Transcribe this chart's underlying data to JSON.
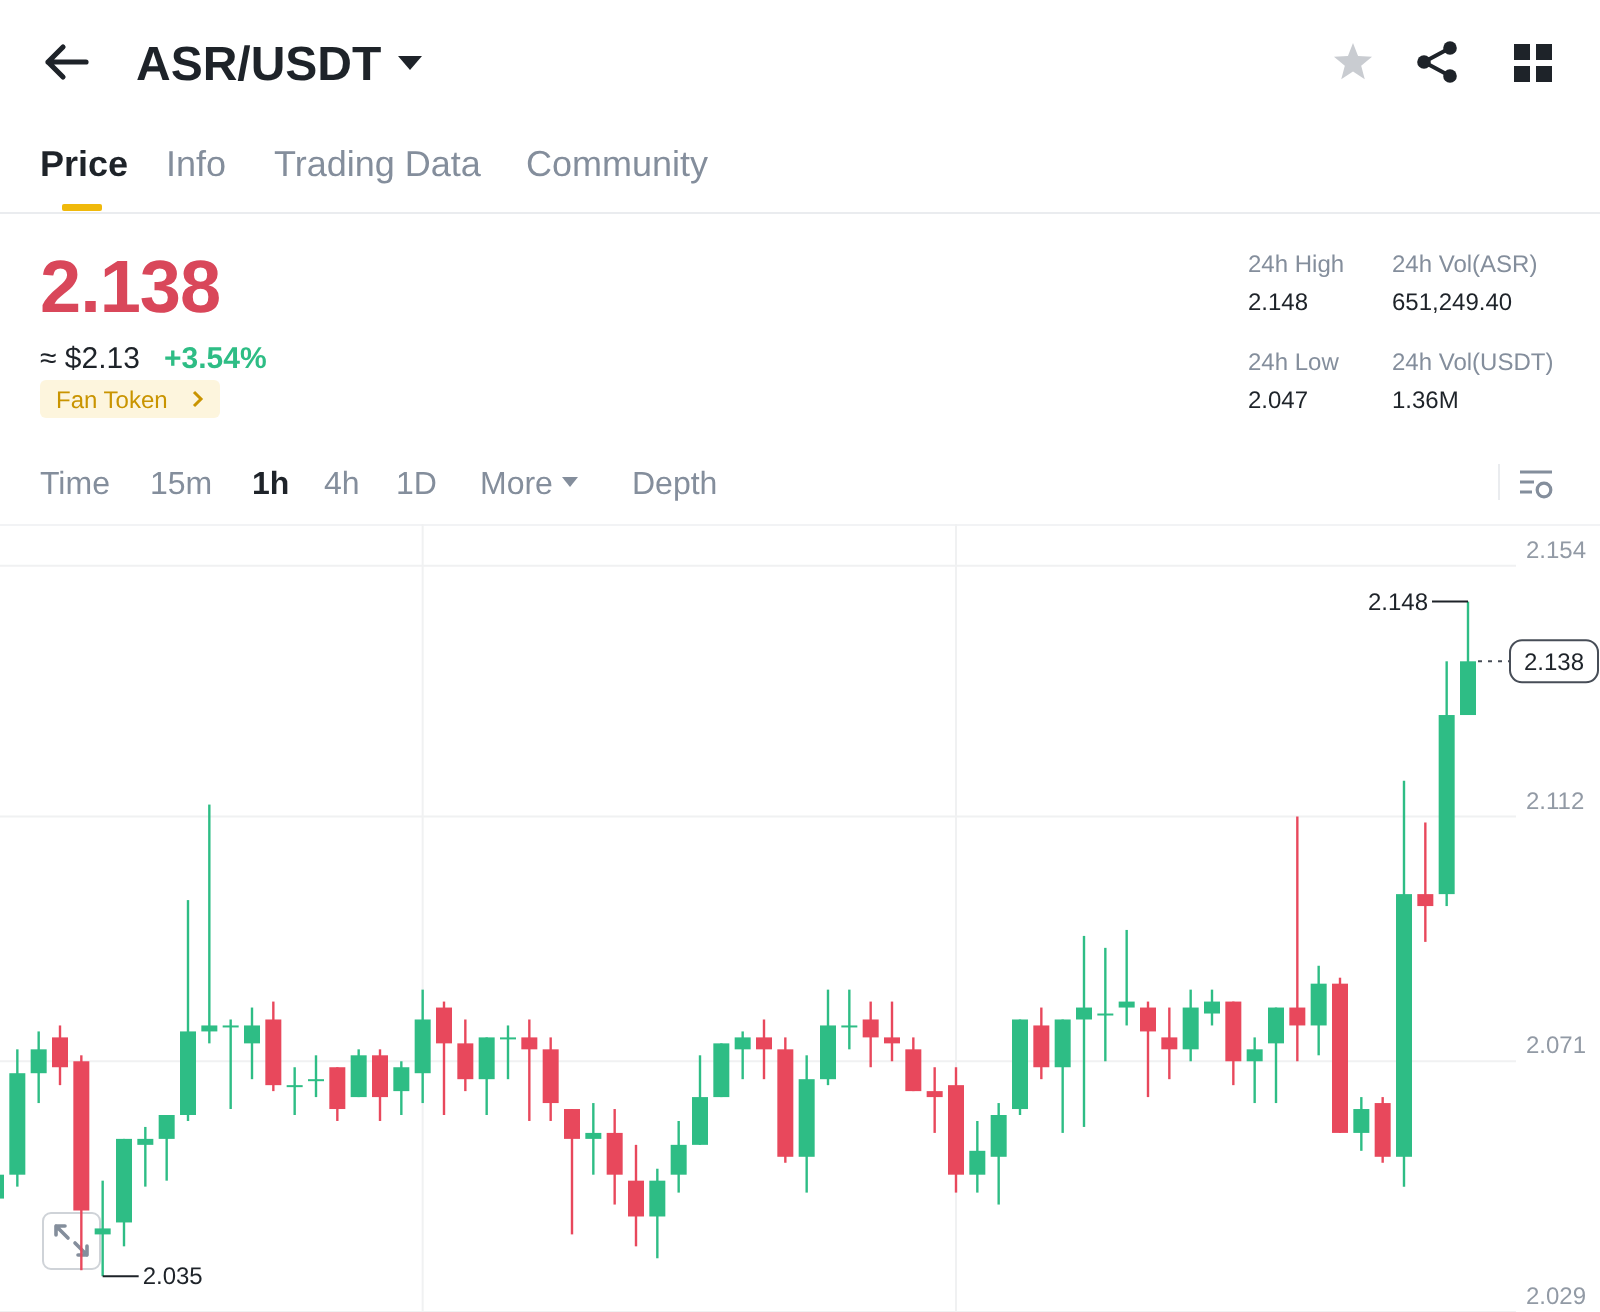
{
  "chart_data": {
    "type": "candlestick",
    "title": "ASR/USDT",
    "annotations": [
      "Price",
      "Info",
      "Trading Data",
      "Community",
      "2.138",
      "≈ $2.13",
      "+3.54%",
      "Fan Token",
      "24h High",
      "2.148",
      "24h Low",
      "2.047",
      "24h Vol(ASR)",
      "651,249.40",
      "24h Vol(USDT)",
      "1.36M",
      "Time",
      "15m",
      "1h",
      "4h",
      "1D",
      "More",
      "Depth",
      "2.148",
      "2.035"
    ],
    "categories": [
      null,
      null,
      null,
      null,
      null,
      null,
      null,
      null,
      null,
      null,
      null,
      null,
      null,
      null,
      null,
      null,
      null,
      null,
      null,
      null,
      null,
      null,
      null,
      null,
      null,
      null,
      null,
      null,
      null,
      null,
      null,
      null,
      null,
      null,
      null,
      null,
      null,
      null,
      null,
      null,
      null,
      null,
      null,
      null,
      null,
      null,
      null,
      null,
      null,
      null,
      null,
      null,
      null,
      null,
      null,
      null,
      null,
      null,
      null,
      null,
      null,
      null,
      null,
      null,
      null,
      null,
      null,
      null,
      null,
      null
    ],
    "ohlc": [
      [
        2.048,
        2.052,
        2.048,
        2.052
      ],
      [
        2.052,
        2.073,
        2.05,
        2.069
      ],
      [
        2.069,
        2.076,
        2.064,
        2.073
      ],
      [
        2.075,
        2.077,
        2.067,
        2.07
      ],
      [
        2.071,
        2.072,
        2.036,
        2.046
      ],
      [
        2.042,
        2.051,
        2.035,
        2.043
      ],
      [
        2.044,
        2.058,
        2.04,
        2.058
      ],
      [
        2.057,
        2.06,
        2.05,
        2.058
      ],
      [
        2.058,
        2.062,
        2.051,
        2.062
      ],
      [
        2.062,
        2.098,
        2.061,
        2.076
      ],
      [
        2.076,
        2.114,
        2.074,
        2.077
      ],
      [
        2.077,
        2.078,
        2.063,
        2.077
      ],
      [
        2.074,
        2.08,
        2.068,
        2.077
      ],
      [
        2.078,
        2.081,
        2.066,
        2.067
      ],
      [
        2.067,
        2.07,
        2.062,
        2.067
      ],
      [
        2.068,
        2.072,
        2.065,
        2.068
      ],
      [
        2.07,
        2.07,
        2.061,
        2.063
      ],
      [
        2.065,
        2.073,
        2.065,
        2.072
      ],
      [
        2.072,
        2.073,
        2.061,
        2.065
      ],
      [
        2.066,
        2.071,
        2.062,
        2.07
      ],
      [
        2.069,
        2.083,
        2.064,
        2.078
      ],
      [
        2.08,
        2.081,
        2.062,
        2.074
      ],
      [
        2.074,
        2.078,
        2.066,
        2.068
      ],
      [
        2.068,
        2.075,
        2.062,
        2.075
      ],
      [
        2.075,
        2.077,
        2.068,
        2.075
      ],
      [
        2.075,
        2.078,
        2.061,
        2.073
      ],
      [
        2.073,
        2.075,
        2.061,
        2.064
      ],
      [
        2.063,
        2.063,
        2.042,
        2.058
      ],
      [
        2.058,
        2.064,
        2.052,
        2.059
      ],
      [
        2.059,
        2.063,
        2.047,
        2.052
      ],
      [
        2.051,
        2.057,
        2.04,
        2.045
      ],
      [
        2.045,
        2.053,
        2.038,
        2.051
      ],
      [
        2.052,
        2.061,
        2.049,
        2.057
      ],
      [
        2.057,
        2.072,
        2.057,
        2.065
      ],
      [
        2.065,
        2.074,
        2.065,
        2.074
      ],
      [
        2.073,
        2.076,
        2.068,
        2.075
      ],
      [
        2.075,
        2.078,
        2.068,
        2.073
      ],
      [
        2.073,
        2.075,
        2.054,
        2.055
      ],
      [
        2.055,
        2.072,
        2.049,
        2.068
      ],
      [
        2.068,
        2.083,
        2.067,
        2.077
      ],
      [
        2.077,
        2.083,
        2.073,
        2.077
      ],
      [
        2.078,
        2.081,
        2.07,
        2.075
      ],
      [
        2.075,
        2.081,
        2.071,
        2.074
      ],
      [
        2.073,
        2.075,
        2.066,
        2.066
      ],
      [
        2.066,
        2.07,
        2.059,
        2.065
      ],
      [
        2.067,
        2.07,
        2.049,
        2.052
      ],
      [
        2.052,
        2.061,
        2.049,
        2.056
      ],
      [
        2.055,
        2.064,
        2.047,
        2.062
      ],
      [
        2.063,
        2.078,
        2.062,
        2.078
      ],
      [
        2.077,
        2.08,
        2.068,
        2.07
      ],
      [
        2.07,
        2.078,
        2.059,
        2.078
      ],
      [
        2.078,
        2.092,
        2.06,
        2.08
      ],
      [
        2.079,
        2.09,
        2.071,
        2.079
      ],
      [
        2.08,
        2.093,
        2.077,
        2.081
      ],
      [
        2.08,
        2.081,
        2.065,
        2.076
      ],
      [
        2.075,
        2.08,
        2.068,
        2.073
      ],
      [
        2.073,
        2.083,
        2.071,
        2.08
      ],
      [
        2.079,
        2.083,
        2.077,
        2.081
      ],
      [
        2.081,
        2.081,
        2.067,
        2.071
      ],
      [
        2.071,
        2.075,
        2.064,
        2.073
      ],
      [
        2.074,
        2.08,
        2.064,
        2.08
      ],
      [
        2.08,
        2.112,
        2.071,
        2.077
      ],
      [
        2.077,
        2.087,
        2.072,
        2.084
      ],
      [
        2.084,
        2.085,
        2.059,
        2.059
      ],
      [
        2.059,
        2.065,
        2.056,
        2.063
      ],
      [
        2.064,
        2.065,
        2.054,
        2.055
      ],
      [
        2.055,
        2.118,
        2.05,
        2.099
      ],
      [
        2.099,
        2.111,
        2.091,
        2.097
      ],
      [
        2.099,
        2.138,
        2.097,
        2.129
      ],
      [
        2.129,
        2.148,
        2.129,
        2.138
      ]
    ],
    "colors": [
      "#2ebd85",
      "#2ebd85",
      "#2ebd85",
      "#e8485c",
      "#e8485c",
      "#2ebd85",
      "#2ebd85",
      "#2ebd85",
      "#2ebd85",
      "#2ebd85",
      "#2ebd85",
      "#2ebd85",
      "#2ebd85",
      "#e8485c",
      "#2ebd85",
      "#2ebd85",
      "#e8485c",
      "#2ebd85",
      "#e8485c",
      "#2ebd85",
      "#2ebd85",
      "#e8485c",
      "#e8485c",
      "#2ebd85",
      "#2ebd85",
      "#e8485c",
      "#e8485c",
      "#e8485c",
      "#2ebd85",
      "#e8485c",
      "#e8485c",
      "#2ebd85",
      "#2ebd85",
      "#2ebd85",
      "#2ebd85",
      "#2ebd85",
      "#e8485c",
      "#e8485c",
      "#2ebd85",
      "#2ebd85",
      "#2ebd85",
      "#e8485c",
      "#e8485c",
      "#e8485c",
      "#e8485c",
      "#e8485c",
      "#2ebd85",
      "#2ebd85",
      "#2ebd85",
      "#e8485c",
      "#2ebd85",
      "#2ebd85",
      "#2ebd85",
      "#2ebd85",
      "#e8485c",
      "#e8485c",
      "#2ebd85",
      "#2ebd85",
      "#e8485c",
      "#2ebd85",
      "#2ebd85",
      "#e8485c",
      "#2ebd85",
      "#e8485c",
      "#2ebd85",
      "#e8485c",
      "#2ebd85",
      "#e8485c",
      "#2ebd85",
      "#2ebd85"
    ],
    "ylim": [
      2.029,
      2.161
    ],
    "yticks": [
      2.154,
      2.112,
      2.071,
      2.029
    ],
    "tick_labels": "y",
    "grid": true,
    "ref_lines": [
      {
        "axis": "y",
        "value": 2.138,
        "label": "2.138",
        "line_style": "dotted",
        "color": "#474d57"
      }
    ]
  }
}
